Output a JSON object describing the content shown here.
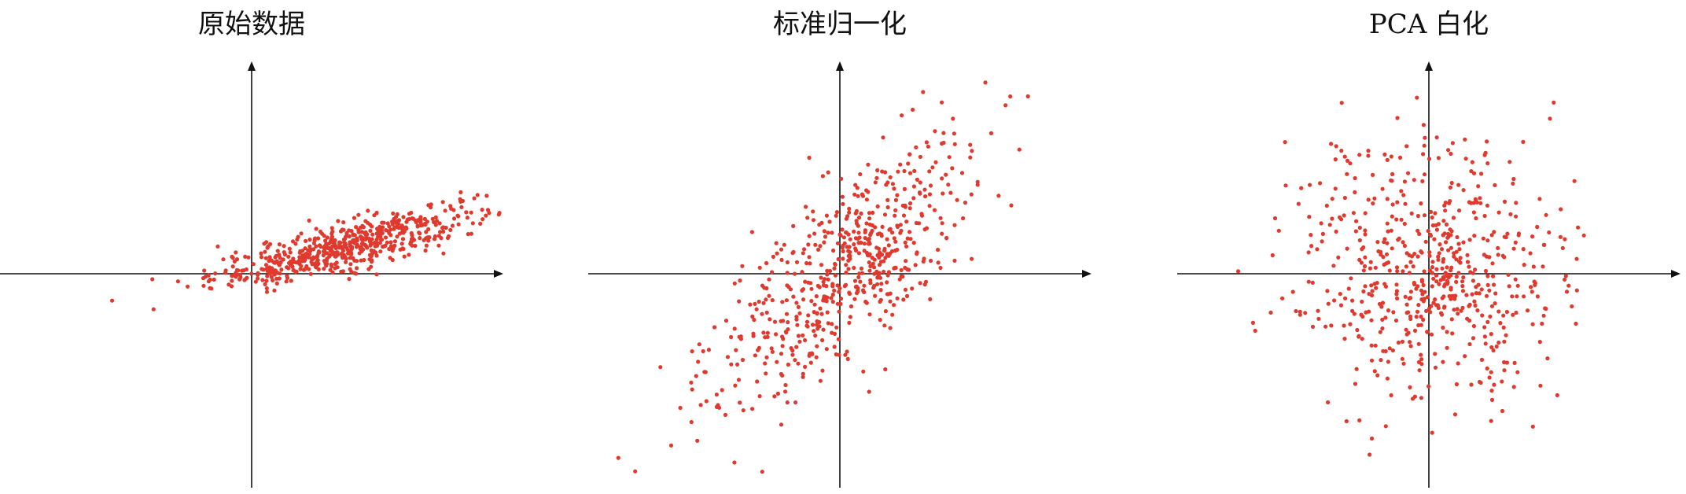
{
  "chart_data": [
    {
      "type": "scatter",
      "title": "原始数据",
      "xlim": [
        -3.2,
        3.2
      ],
      "ylim": [
        -2.7,
        2.7
      ],
      "n_points": 600,
      "distribution": {
        "mean_x": 1.2,
        "mean_y": 0.35,
        "std_x": 0.85,
        "std_y": 0.26,
        "correlation": 0.82
      },
      "point_color": "#e03a2f"
    },
    {
      "type": "scatter",
      "title": "标准归一化",
      "xlim": [
        -3.2,
        3.2
      ],
      "ylim": [
        -2.7,
        2.7
      ],
      "n_points": 600,
      "distribution": {
        "mean_x": 0.0,
        "mean_y": 0.0,
        "std_x": 0.85,
        "std_y": 0.85,
        "correlation": 0.75
      },
      "point_color": "#e03a2f"
    },
    {
      "type": "scatter",
      "title": "PCA 白化",
      "xlim": [
        -3.2,
        3.2
      ],
      "ylim": [
        -2.7,
        2.7
      ],
      "n_points": 600,
      "distribution": {
        "mean_x": 0.0,
        "mean_y": 0.0,
        "std_x": 0.85,
        "std_y": 0.85,
        "correlation": 0.0
      },
      "point_color": "#e03a2f"
    }
  ]
}
